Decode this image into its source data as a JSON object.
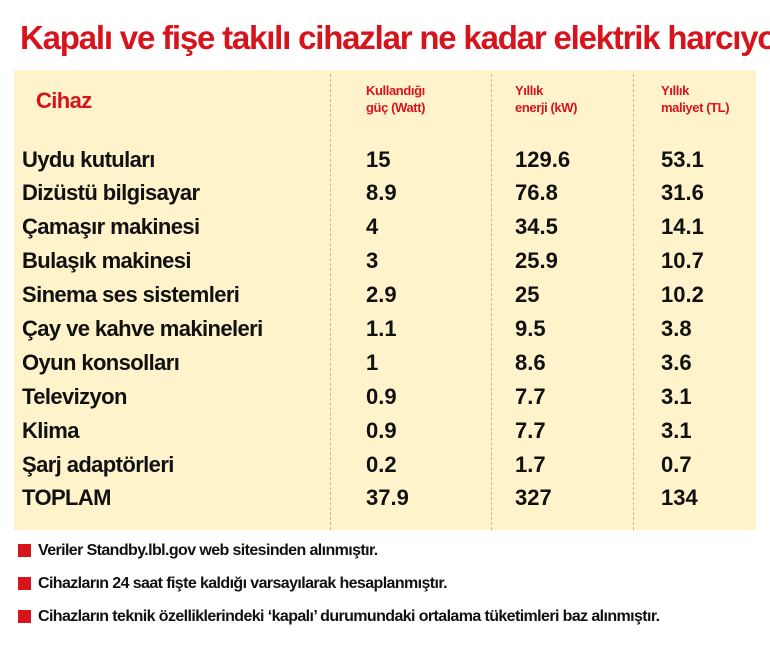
{
  "title": "Kapalı ve fişe takılı cihazlar ne kadar elektrik harcıyor",
  "columns": {
    "device": "Cihaz",
    "power": [
      "Kullandığı",
      "güç (Watt)"
    ],
    "energy": [
      "Yıllık",
      "enerji (kW)"
    ],
    "cost": [
      "Yıllık",
      "maliyet (TL)"
    ]
  },
  "rows": [
    {
      "device": "Uydu kutuları",
      "power": "15",
      "energy": "129.6",
      "cost": "53.1"
    },
    {
      "device": "Dizüstü bilgisayar",
      "power": "8.9",
      "energy": "76.8",
      "cost": "31.6"
    },
    {
      "device": "Çamaşır makinesi",
      "power": "4",
      "energy": "34.5",
      "cost": "14.1"
    },
    {
      "device": "Bulaşık makinesi",
      "power": "3",
      "energy": "25.9",
      "cost": "10.7"
    },
    {
      "device": "Sinema ses sistemleri",
      "power": "2.9",
      "energy": "25",
      "cost": "10.2"
    },
    {
      "device": "Çay ve kahve makineleri",
      "power": "1.1",
      "energy": "9.5",
      "cost": "3.8"
    },
    {
      "device": "Oyun konsolları",
      "power": "1",
      "energy": "8.6",
      "cost": "3.6"
    },
    {
      "device": "Televizyon",
      "power": "0.9",
      "energy": "7.7",
      "cost": "3.1"
    },
    {
      "device": "Klima",
      "power": "0.9",
      "energy": "7.7",
      "cost": "3.1"
    },
    {
      "device": "Şarj adaptörleri",
      "power": "0.2",
      "energy": "1.7",
      "cost": "0.7"
    },
    {
      "device": "TOPLAM",
      "power": "37.9",
      "energy": "327",
      "cost": "134"
    }
  ],
  "notes": [
    "Veriler Standby.lbl.gov web sitesinden alınmıştır.",
    "Cihazların 24 saat fişte kaldığı varsayılarak hesaplanmıştır.",
    "Cihazların teknik özelliklerindeki ‘kapalı’ durumundaki ortalama tüketimleri baz alınmıştır."
  ],
  "colors": {
    "accent": "#d7141c",
    "panel": "#fff3cc",
    "text": "#111111"
  }
}
